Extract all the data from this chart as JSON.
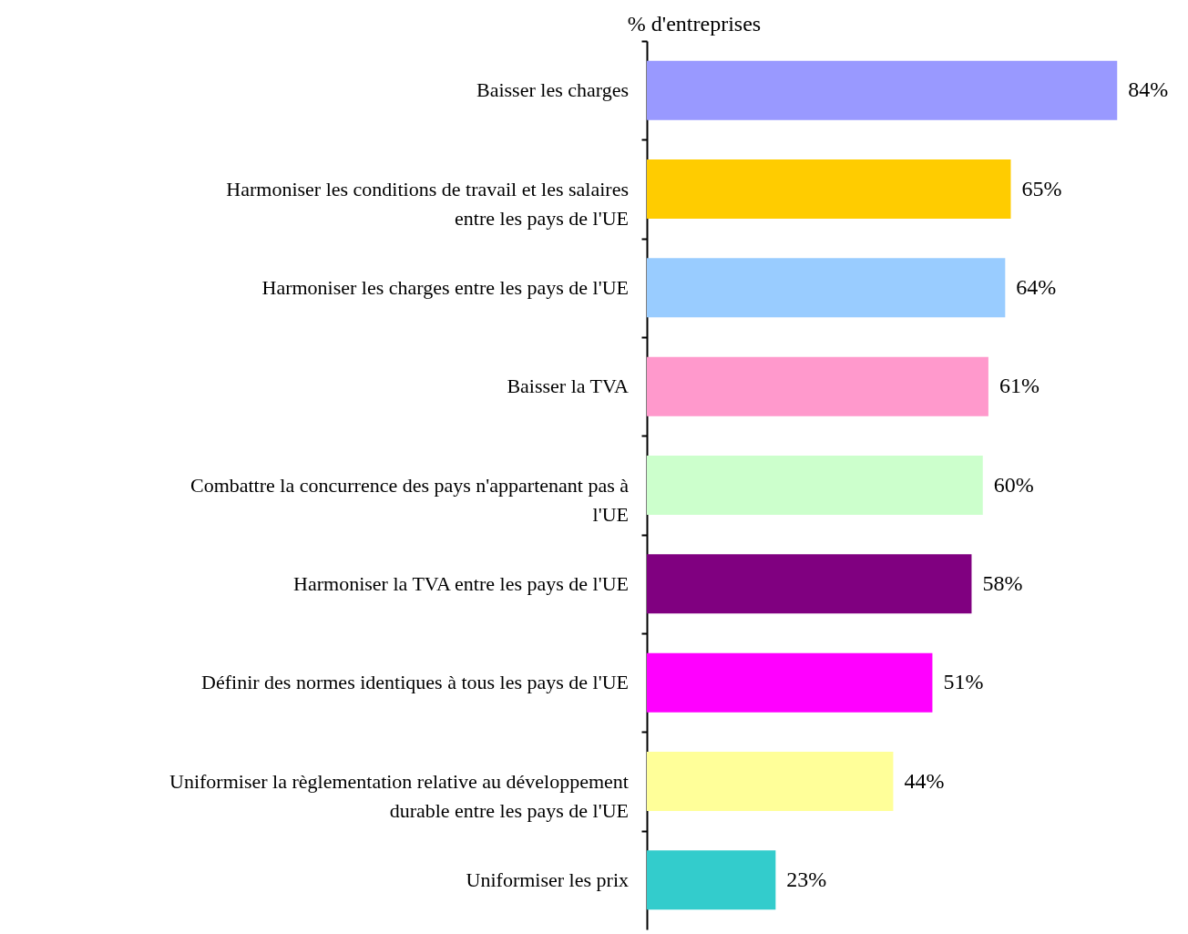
{
  "chart_data": {
    "type": "bar",
    "orientation": "horizontal",
    "title": "% d'entreprises",
    "categories": [
      "Baisser les charges",
      "Harmoniser les conditions de travail et les salaires\nentre les pays de l'UE",
      "Harmoniser les charges entre les pays  de l'UE",
      "Baisser la TVA",
      "Combattre la concurrence des pays n'appartenant pas à\nl'UE",
      "Harmoniser la TVA entre les pays de l'UE",
      "Définir des normes identiques à tous les pays de l'UE",
      "Uniformiser la règlementation relative au développement\ndurable entre les pays de l'UE",
      "Uniformiser les prix"
    ],
    "values": [
      84,
      65,
      64,
      61,
      60,
      58,
      51,
      44,
      23
    ],
    "value_labels": [
      "84%",
      "65%",
      "64%",
      "61%",
      "60%",
      "58%",
      "51%",
      "44%",
      "23%"
    ],
    "colors": [
      "#9999ff",
      "#ffcc00",
      "#99ccff",
      "#ff99cc",
      "#ccffcc",
      "#800080",
      "#ff00ff",
      "#ffff99",
      "#33cccc"
    ],
    "xlim": [
      0,
      96
    ],
    "tick_labels": false,
    "grid": false
  }
}
